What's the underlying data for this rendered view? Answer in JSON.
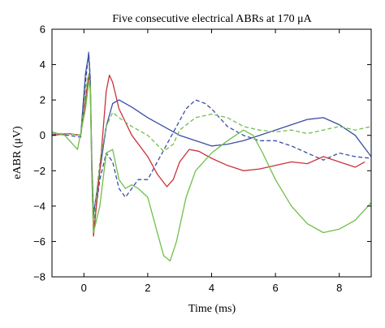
{
  "chart_data": {
    "type": "line",
    "title": "Five consecutive electrical ABRs at 170 μA",
    "xlabel": "Time (ms)",
    "ylabel": "eABR (μV)",
    "xlim": [
      -1,
      9
    ],
    "ylim": [
      -8,
      6
    ],
    "xticks": [
      0,
      2,
      4,
      6,
      8
    ],
    "yticks": [
      -8,
      -6,
      -4,
      -2,
      0,
      2,
      4,
      6
    ],
    "grid": false,
    "legend": "none",
    "series": [
      {
        "color": "#3b4ea3",
        "dash": "solid",
        "x": [
          -1,
          -0.5,
          -0.1,
          0.05,
          0.15,
          0.2,
          0.25,
          0.3,
          0.5,
          0.7,
          0.9,
          1.1,
          1.5,
          2.0,
          2.5,
          3.0,
          3.5,
          4.0,
          4.5,
          5.0,
          5.5,
          6.0,
          6.5,
          7.0,
          7.5,
          8.0,
          8.5,
          9.0
        ],
        "y": [
          0.0,
          0.1,
          0.0,
          3.5,
          4.6,
          3.0,
          -1.5,
          -4.5,
          -2.0,
          0.5,
          1.8,
          2.0,
          1.6,
          1.0,
          0.5,
          0.0,
          -0.3,
          -0.6,
          -0.5,
          -0.3,
          0.0,
          0.3,
          0.6,
          0.9,
          1.0,
          0.6,
          0.0,
          -1.2
        ]
      },
      {
        "color": "#3b4ea3",
        "dash": "dashed",
        "x": [
          -1,
          -0.5,
          -0.1,
          0.05,
          0.15,
          0.2,
          0.25,
          0.3,
          0.5,
          0.7,
          0.9,
          1.1,
          1.3,
          1.5,
          1.7,
          2.0,
          2.3,
          2.6,
          2.9,
          3.2,
          3.5,
          3.8,
          4.0,
          4.5,
          5.0,
          5.5,
          6.0,
          6.5,
          7.0,
          7.5,
          8.0,
          8.5,
          9.0
        ],
        "y": [
          0.1,
          0.0,
          -0.1,
          3.0,
          4.7,
          3.2,
          -2.0,
          -5.2,
          -2.5,
          -1.0,
          -1.5,
          -3.0,
          -3.5,
          -3.0,
          -2.5,
          -2.5,
          -1.5,
          -0.5,
          0.5,
          1.5,
          2.0,
          1.8,
          1.5,
          0.5,
          0.0,
          -0.3,
          -0.3,
          -0.6,
          -1.0,
          -1.4,
          -1.0,
          -1.2,
          -1.3
        ]
      },
      {
        "color": "#c8323c",
        "dash": "solid",
        "x": [
          -1,
          -0.5,
          -0.1,
          0.05,
          0.15,
          0.2,
          0.25,
          0.3,
          0.5,
          0.7,
          0.8,
          0.9,
          1.1,
          1.5,
          2.0,
          2.3,
          2.6,
          2.8,
          3.0,
          3.3,
          3.6,
          4.0,
          4.5,
          5.0,
          5.5,
          6.0,
          6.5,
          7.0,
          7.5,
          8.0,
          8.5,
          8.8
        ],
        "y": [
          0.0,
          0.1,
          0.0,
          2.0,
          3.4,
          2.5,
          -2.0,
          -5.7,
          -2.0,
          2.5,
          3.4,
          3.0,
          1.5,
          0.0,
          -1.2,
          -2.2,
          -2.9,
          -2.5,
          -1.5,
          -0.8,
          -0.9,
          -1.3,
          -1.7,
          -2.0,
          -1.9,
          -1.7,
          -1.5,
          -1.6,
          -1.2,
          -1.5,
          -1.8,
          -1.5
        ]
      },
      {
        "color": "#6fbf4a",
        "dash": "dashed",
        "x": [
          -1,
          -0.5,
          -0.1,
          0.05,
          0.15,
          0.2,
          0.25,
          0.3,
          0.5,
          0.7,
          0.9,
          1.1,
          1.5,
          2.0,
          2.5,
          2.8,
          3.0,
          3.5,
          4.0,
          4.5,
          5.0,
          5.5,
          6.0,
          6.5,
          7.0,
          7.5,
          8.0,
          8.5,
          9.0
        ],
        "y": [
          0.1,
          0.1,
          0.0,
          2.5,
          3.5,
          2.8,
          -2.0,
          -5.0,
          -1.5,
          0.5,
          1.3,
          1.0,
          0.5,
          0.0,
          -0.9,
          -0.5,
          0.3,
          1.0,
          1.2,
          1.0,
          0.5,
          0.3,
          0.2,
          0.3,
          0.1,
          0.3,
          0.5,
          0.3,
          0.5
        ]
      },
      {
        "color": "#6fbf4a",
        "dash": "solid",
        "x": [
          -1,
          -0.6,
          -0.2,
          0.05,
          0.15,
          0.2,
          0.25,
          0.3,
          0.5,
          0.7,
          0.9,
          1.1,
          1.3,
          1.5,
          1.7,
          2.0,
          2.3,
          2.5,
          2.7,
          2.9,
          3.2,
          3.5,
          4.0,
          4.5,
          5.0,
          5.3,
          5.6,
          6.0,
          6.5,
          7.0,
          7.5,
          8.0,
          8.5,
          9.0
        ],
        "y": [
          0.2,
          0.0,
          -0.8,
          1.5,
          3.0,
          2.8,
          -2.5,
          -5.5,
          -4.0,
          -1.0,
          -0.8,
          -2.5,
          -3.0,
          -2.8,
          -3.0,
          -3.5,
          -5.5,
          -6.8,
          -7.1,
          -6.0,
          -3.5,
          -2.0,
          -1.0,
          -0.3,
          0.3,
          0.0,
          -1.0,
          -2.5,
          -4.0,
          -5.0,
          -5.5,
          -5.3,
          -4.8,
          -3.8
        ]
      }
    ]
  }
}
